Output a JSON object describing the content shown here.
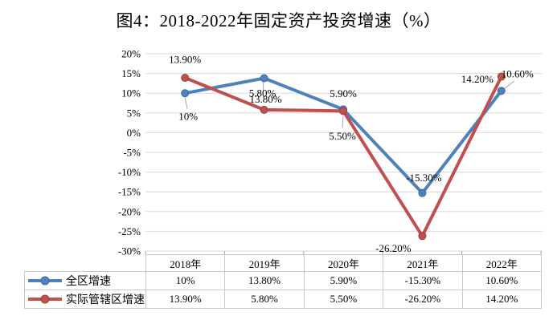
{
  "title": "图4：2018-2022年固定资产投资增速（%）",
  "chart_data": {
    "type": "line",
    "title": "图4：2018-2022年固定资产投资增速（%）",
    "categories": [
      "2018年",
      "2019年",
      "2020年",
      "2021年",
      "2022年"
    ],
    "series": [
      {
        "name": "全区增速",
        "color": "#4f81bd",
        "marker_edge": "#3a6aa5",
        "values": [
          10,
          13.8,
          5.9,
          -15.3,
          10.6
        ],
        "labels": [
          "10%",
          "13.80%",
          "5.90%",
          "-15.30%",
          "10.60%"
        ]
      },
      {
        "name": "实际管辖区增速",
        "color": "#c0504d",
        "marker_edge": "#9e3d3a",
        "values": [
          13.9,
          5.8,
          5.5,
          -26.2,
          14.2
        ],
        "labels": [
          "13.90%",
          "5.80%",
          "5.50%",
          "-26.20%",
          "14.20%"
        ]
      }
    ],
    "ylim": [
      -30,
      20
    ],
    "ytick_step": 5,
    "ytick_labels": [
      "20%",
      "15%",
      "10%",
      "5%",
      "0%",
      "-5%",
      "-10%",
      "-15%",
      "-20%",
      "-25%",
      "-30%"
    ],
    "grid": true,
    "legend_position": "table-left",
    "colors": {
      "gridline": "#d9d9d9",
      "axis_tick": "#a6a6a6",
      "leader": "#a6a6a6",
      "table_border": "#c9c9c9",
      "text": "#000000"
    }
  }
}
